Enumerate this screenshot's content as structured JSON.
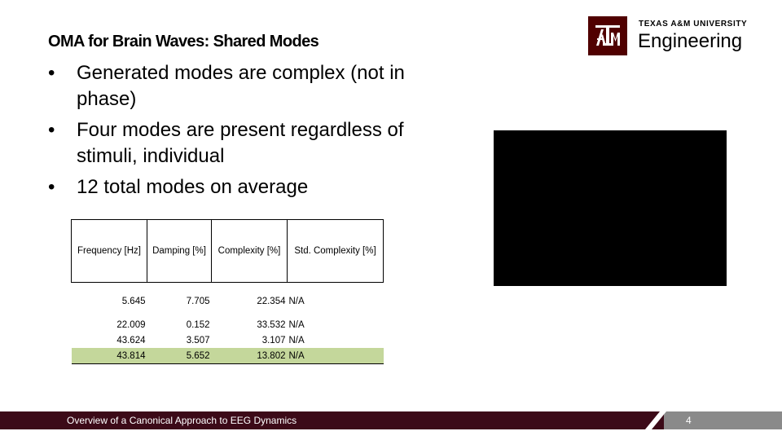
{
  "slide": {
    "title": "OMA for Brain Waves: Shared Modes",
    "bullets": [
      "Generated modes are complex (not in phase)",
      "Four modes are present regardless of stimuli, individual",
      "12 total modes on average"
    ],
    "bullet_symbol": "•"
  },
  "logo": {
    "university": "TEXAS A&M UNIVERSITY",
    "department": "Engineering",
    "brand_color": "#500000"
  },
  "table": {
    "headers": [
      "Frequency [Hz]",
      "Damping [%]",
      "Complexity [%]",
      "Std. Complexity [%]"
    ],
    "rows": [
      [
        "5.645",
        "7.705",
        "22.354",
        "N/A"
      ],
      [
        "22.009",
        "0.152",
        "33.532",
        "N/A"
      ],
      [
        "43.624",
        "3.507",
        "3.107",
        "N/A"
      ],
      [
        "43.814",
        "5.652",
        "13.802",
        "N/A"
      ]
    ],
    "highlight_color": "#c4d79b"
  },
  "footer": {
    "text": "Overview of a Canonical Approach to EEG Dynamics",
    "page_number": "4",
    "bar_color": "#3c0a18",
    "accent_color": "#8a8a8a"
  }
}
